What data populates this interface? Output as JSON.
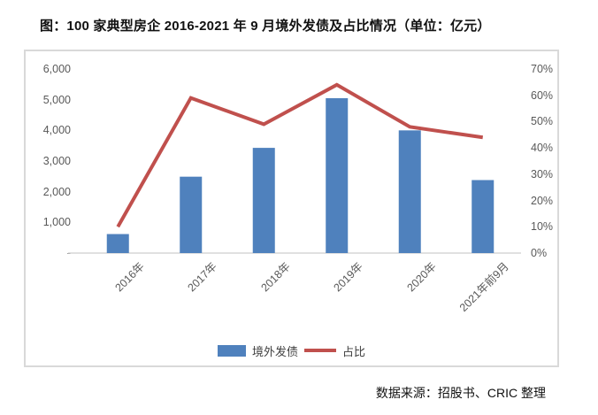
{
  "title": "图：100 家典型房企 2016-2021 年 9 月境外发债及占比情况（单位：亿元）",
  "source": "数据来源：招股书、CRIC 整理",
  "legend": {
    "bar_label": "境外发债",
    "line_label": "占比"
  },
  "chart_data": {
    "type": "bar",
    "subtype": "bar+line combo, dual axis",
    "title": "100家典型房企2016-2021年9月境外发债及占比情况（单位：亿元）",
    "categories": [
      "2016年",
      "2017年",
      "2018年",
      "2019年",
      "2020年",
      "2021年前9月"
    ],
    "series": [
      {
        "name": "境外发债",
        "type": "bar",
        "axis": "left",
        "unit": "亿元",
        "values": [
          620,
          2490,
          3430,
          5050,
          4000,
          2380
        ]
      },
      {
        "name": "占比",
        "type": "line",
        "axis": "right",
        "unit": "%",
        "values": [
          10,
          59,
          49,
          64,
          48,
          44
        ]
      }
    ],
    "left_axis": {
      "min": 0,
      "max": 6000,
      "step": 1000,
      "tick_labels": [
        "6,000",
        "5,000",
        "4,000",
        "3,000",
        "2,000",
        "1,000",
        "-"
      ]
    },
    "right_axis": {
      "min": 0,
      "max": 70,
      "step": 10,
      "tick_labels": [
        "70%",
        "60%",
        "50%",
        "40%",
        "30%",
        "20%",
        "10%",
        "0%"
      ]
    },
    "colors": {
      "bar": "#4f81bd",
      "line": "#c0504d",
      "axis_text": "#595959",
      "baseline": "#d6d6d6"
    },
    "grid": false,
    "legend_position": "bottom"
  }
}
